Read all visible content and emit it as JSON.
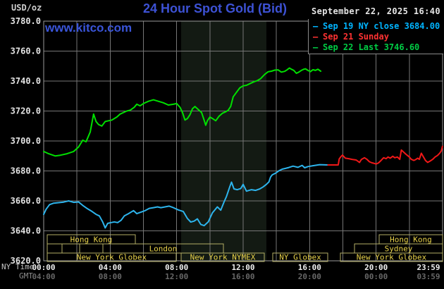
{
  "header": {
    "unit_label": "USD/oz",
    "title": "24 Hour Spot Gold (Bid)",
    "datetime": "September 22, 2025 16:40",
    "watermark": "www.kitco.com"
  },
  "legend": {
    "items": [
      {
        "label": "Sep 19 NY close 3684.00",
        "color": "#00b4ff"
      },
      {
        "label": "Sep 21 Sunday",
        "color": "#ff3232"
      },
      {
        "label": "Sep 22 Last 3746.60",
        "color": "#00cc44"
      }
    ]
  },
  "axis": {
    "ny_caption": "NY Time",
    "gmt_caption": "GMT",
    "y_ticks": [
      {
        "value": 3780,
        "label": "3780.0"
      },
      {
        "value": 3760,
        "label": "3760.0"
      },
      {
        "value": 3740,
        "label": "3740.0"
      },
      {
        "value": 3720,
        "label": "3720.0"
      },
      {
        "value": 3700,
        "label": "3700.0"
      },
      {
        "value": 3680,
        "label": "3680.0"
      },
      {
        "value": 3660,
        "label": "3660.0"
      },
      {
        "value": 3640,
        "label": "3640.0"
      },
      {
        "value": 3620,
        "label": "3620.0"
      }
    ],
    "x_ticks": [
      {
        "hour": 0,
        "ny": "00:00",
        "gmt": "04:00"
      },
      {
        "hour": 4,
        "ny": "04:00",
        "gmt": "08:00"
      },
      {
        "hour": 8,
        "ny": "08:00",
        "gmt": "12:00"
      },
      {
        "hour": 12,
        "ny": "12:00",
        "gmt": "16:00"
      },
      {
        "hour": 16,
        "ny": "16:00",
        "gmt": "20:00"
      },
      {
        "hour": 20,
        "ny": "20:00",
        "gmt": "00:00"
      },
      {
        "hour": 23.983,
        "ny": "23:59",
        "gmt": "03:59"
      }
    ]
  },
  "sessions": {
    "label_color": "#e8d24a",
    "box_color": "#b3ae66",
    "rows": [
      {
        "y": 333,
        "h": 13,
        "boxes": [
          {
            "label": "Hong Kong",
            "start": 0.21,
            "end": 5.51
          },
          {
            "label": "Hong Kong",
            "start": 20.18,
            "end": 24
          }
        ]
      },
      {
        "y": 346,
        "h": 13,
        "boxes": [
          {
            "label": "",
            "start": 0.21,
            "end": 1.1
          },
          {
            "label": "",
            "start": 1.1,
            "end": 2.17
          },
          {
            "label": "London",
            "start": 3.56,
            "end": 10.81
          },
          {
            "label": "Sydney",
            "start": 18.7,
            "end": 24
          }
        ]
      },
      {
        "y": 359,
        "h": 12,
        "boxes": [
          {
            "label": "New York Globex",
            "start": 0.21,
            "end": 7.97
          },
          {
            "label": "New York NYMEX",
            "start": 8.27,
            "end": 13.27
          },
          {
            "label": "NY Globex",
            "start": 13.78,
            "end": 17.09
          },
          {
            "label": "New York Globex",
            "start": 17.85,
            "end": 24
          }
        ]
      }
    ]
  },
  "chart_data": {
    "type": "line",
    "title": "24 Hour Spot Gold (Bid)",
    "x_unit": "hours (NY time)",
    "y_unit": "USD/oz",
    "xlim": [
      0,
      24
    ],
    "ylim": [
      3620,
      3780
    ],
    "grid": {
      "x_step_hours": 2,
      "y_step": 20,
      "color": "#767676"
    },
    "shaded_region": {
      "start": 8.27,
      "end": 13.4,
      "color": "#131a13",
      "note": "NYMEX session band"
    },
    "series": [
      {
        "name": "Sep 22 (Last 3746.60)",
        "color": "#00e000",
        "points": [
          [
            0,
            3693
          ],
          [
            0.3,
            3691.5
          ],
          [
            0.7,
            3690
          ],
          [
            1.0,
            3690.5
          ],
          [
            1.4,
            3691.5
          ],
          [
            1.8,
            3693
          ],
          [
            2.1,
            3696
          ],
          [
            2.35,
            3700.5
          ],
          [
            2.55,
            3699.5
          ],
          [
            2.8,
            3706
          ],
          [
            3.0,
            3718
          ],
          [
            3.15,
            3713
          ],
          [
            3.3,
            3711
          ],
          [
            3.5,
            3710
          ],
          [
            3.7,
            3713
          ],
          [
            3.9,
            3713.5
          ],
          [
            4.1,
            3714
          ],
          [
            4.4,
            3716
          ],
          [
            4.6,
            3718
          ],
          [
            4.8,
            3719
          ],
          [
            5.0,
            3720
          ],
          [
            5.2,
            3720.5
          ],
          [
            5.45,
            3722.5
          ],
          [
            5.6,
            3724.5
          ],
          [
            5.8,
            3723.5
          ],
          [
            6.0,
            3725
          ],
          [
            6.3,
            3726.5
          ],
          [
            6.6,
            3727.5
          ],
          [
            6.9,
            3726.5
          ],
          [
            7.2,
            3725.5
          ],
          [
            7.5,
            3724
          ],
          [
            7.8,
            3724.5
          ],
          [
            8.0,
            3725
          ],
          [
            8.2,
            3722.5
          ],
          [
            8.35,
            3719
          ],
          [
            8.5,
            3714
          ],
          [
            8.65,
            3715
          ],
          [
            8.8,
            3717.5
          ],
          [
            8.95,
            3721.5
          ],
          [
            9.1,
            3723
          ],
          [
            9.3,
            3721
          ],
          [
            9.5,
            3719
          ],
          [
            9.65,
            3714
          ],
          [
            9.75,
            3710.5
          ],
          [
            9.85,
            3713.5
          ],
          [
            10.0,
            3716
          ],
          [
            10.15,
            3715
          ],
          [
            10.35,
            3713.5
          ],
          [
            10.55,
            3716.5
          ],
          [
            10.75,
            3718.5
          ],
          [
            10.95,
            3719.5
          ],
          [
            11.1,
            3720.5
          ],
          [
            11.25,
            3723
          ],
          [
            11.4,
            3729.5
          ],
          [
            11.6,
            3732.5
          ],
          [
            11.8,
            3735.5
          ],
          [
            12.0,
            3736.8
          ],
          [
            12.2,
            3737.2
          ],
          [
            12.45,
            3738.5
          ],
          [
            12.65,
            3739.5
          ],
          [
            12.85,
            3740.3
          ],
          [
            13.05,
            3741.6
          ],
          [
            13.3,
            3744.5
          ],
          [
            13.5,
            3746.2
          ],
          [
            13.7,
            3746.6
          ],
          [
            13.9,
            3747.3
          ],
          [
            14.1,
            3747.5
          ],
          [
            14.3,
            3746
          ],
          [
            14.5,
            3746.5
          ],
          [
            14.65,
            3747.6
          ],
          [
            14.78,
            3748.7
          ],
          [
            14.9,
            3747.9
          ],
          [
            15.05,
            3747.1
          ],
          [
            15.2,
            3745.2
          ],
          [
            15.35,
            3746
          ],
          [
            15.5,
            3747.1
          ],
          [
            15.65,
            3747.9
          ],
          [
            15.75,
            3748.2
          ],
          [
            15.9,
            3747.1
          ],
          [
            16.05,
            3746.3
          ],
          [
            16.2,
            3747.6
          ],
          [
            16.35,
            3747.1
          ],
          [
            16.5,
            3747.9
          ],
          [
            16.67,
            3746.6
          ]
        ]
      },
      {
        "name": "Sep 19 (NY close 3684.00)",
        "color": "#2db4ec",
        "points": [
          [
            0,
            3651
          ],
          [
            0.15,
            3654.5
          ],
          [
            0.35,
            3657.5
          ],
          [
            0.6,
            3658.5
          ],
          [
            0.9,
            3658.8
          ],
          [
            1.2,
            3659.2
          ],
          [
            1.5,
            3660
          ],
          [
            1.8,
            3659
          ],
          [
            2.1,
            3659.3
          ],
          [
            2.35,
            3657
          ],
          [
            2.6,
            3655
          ],
          [
            2.9,
            3653
          ],
          [
            3.15,
            3651
          ],
          [
            3.35,
            3650
          ],
          [
            3.55,
            3646
          ],
          [
            3.7,
            3642
          ],
          [
            3.85,
            3645
          ],
          [
            4.05,
            3645.5
          ],
          [
            4.25,
            3646
          ],
          [
            4.45,
            3645.5
          ],
          [
            4.65,
            3647
          ],
          [
            4.85,
            3650
          ],
          [
            5.1,
            3651.5
          ],
          [
            5.4,
            3653.5
          ],
          [
            5.6,
            3651.5
          ],
          [
            5.85,
            3652.5
          ],
          [
            6.1,
            3653.5
          ],
          [
            6.35,
            3655
          ],
          [
            6.6,
            3655.5
          ],
          [
            6.85,
            3656
          ],
          [
            7.05,
            3655.5
          ],
          [
            7.3,
            3656
          ],
          [
            7.55,
            3656.5
          ],
          [
            7.8,
            3655.5
          ],
          [
            8.1,
            3654
          ],
          [
            8.4,
            3652.9
          ],
          [
            8.65,
            3648.2
          ],
          [
            8.85,
            3645.9
          ],
          [
            9.05,
            3646.5
          ],
          [
            9.25,
            3648
          ],
          [
            9.45,
            3644.3
          ],
          [
            9.65,
            3643.5
          ],
          [
            9.9,
            3646
          ],
          [
            10.15,
            3652
          ],
          [
            10.45,
            3656
          ],
          [
            10.65,
            3653.8
          ],
          [
            10.85,
            3659.3
          ],
          [
            11.0,
            3663
          ],
          [
            11.2,
            3669.5
          ],
          [
            11.3,
            3672.5
          ],
          [
            11.45,
            3668
          ],
          [
            11.65,
            3667.5
          ],
          [
            11.85,
            3668.2
          ],
          [
            12.0,
            3671
          ],
          [
            12.2,
            3666.5
          ],
          [
            12.5,
            3667.5
          ],
          [
            12.75,
            3667
          ],
          [
            13.0,
            3668
          ],
          [
            13.2,
            3669.3
          ],
          [
            13.4,
            3671
          ],
          [
            13.55,
            3672.7
          ],
          [
            13.65,
            3675.9
          ],
          [
            13.75,
            3677.4
          ],
          [
            13.95,
            3678.5
          ],
          [
            14.15,
            3680.1
          ],
          [
            14.35,
            3681.2
          ],
          [
            14.55,
            3681.7
          ],
          [
            14.75,
            3682.3
          ],
          [
            15.0,
            3683.2
          ],
          [
            15.3,
            3682.4
          ],
          [
            15.55,
            3683.7
          ],
          [
            15.7,
            3682.1
          ],
          [
            15.9,
            3682.9
          ],
          [
            16.2,
            3683.5
          ],
          [
            16.6,
            3684.2
          ],
          [
            17.1,
            3684
          ]
        ]
      },
      {
        "name": "Sep 21 Sunday",
        "color": "#f01818",
        "points": [
          [
            17.1,
            3684
          ],
          [
            17.72,
            3684
          ],
          [
            17.78,
            3688
          ],
          [
            17.88,
            3689.5
          ],
          [
            17.98,
            3690.6
          ],
          [
            18.15,
            3688.5
          ],
          [
            18.35,
            3688.2
          ],
          [
            18.55,
            3687.7
          ],
          [
            18.8,
            3687.3
          ],
          [
            19.0,
            3685.7
          ],
          [
            19.12,
            3687.7
          ],
          [
            19.3,
            3688.8
          ],
          [
            19.45,
            3687.7
          ],
          [
            19.6,
            3686.1
          ],
          [
            19.75,
            3685.4
          ],
          [
            19.9,
            3685
          ],
          [
            20.0,
            3684.6
          ],
          [
            20.15,
            3685.4
          ],
          [
            20.3,
            3687
          ],
          [
            20.45,
            3688.8
          ],
          [
            20.6,
            3688.2
          ],
          [
            20.72,
            3689.3
          ],
          [
            20.85,
            3688.5
          ],
          [
            21.0,
            3689.8
          ],
          [
            21.12,
            3688.8
          ],
          [
            21.28,
            3689.3
          ],
          [
            21.42,
            3687.7
          ],
          [
            21.52,
            3694
          ],
          [
            21.66,
            3692.5
          ],
          [
            21.8,
            3691.1
          ],
          [
            22.0,
            3689.3
          ],
          [
            22.12,
            3687.7
          ],
          [
            22.27,
            3687
          ],
          [
            22.4,
            3687.7
          ],
          [
            22.5,
            3688.5
          ],
          [
            22.6,
            3687.7
          ],
          [
            22.72,
            3691.8
          ],
          [
            22.85,
            3689.3
          ],
          [
            22.97,
            3687
          ],
          [
            23.1,
            3685.7
          ],
          [
            23.25,
            3686.6
          ],
          [
            23.4,
            3687.7
          ],
          [
            23.55,
            3689.3
          ],
          [
            23.7,
            3690.4
          ],
          [
            23.82,
            3691.8
          ],
          [
            23.92,
            3693.3
          ],
          [
            23.99,
            3696.4
          ]
        ]
      }
    ]
  }
}
